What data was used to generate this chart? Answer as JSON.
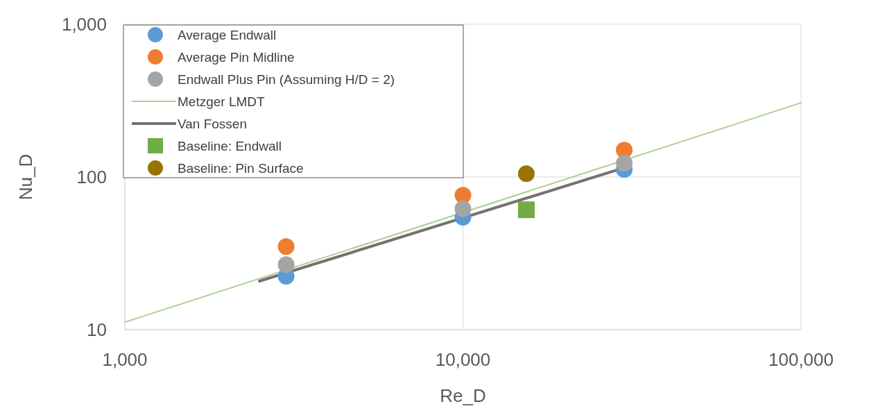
{
  "chart_data": {
    "type": "scatter",
    "xlabel": "Re_D",
    "ylabel": "Nu_D",
    "log": "xy",
    "grid": true,
    "legend": "top left",
    "xlim": [
      1000,
      100000
    ],
    "xticks": [
      {
        "value": 1000,
        "label": "1,000"
      },
      {
        "value": 10000,
        "label": "10,000"
      },
      {
        "value": 100000,
        "label": "100,000"
      }
    ],
    "ylim": [
      10,
      1000
    ],
    "yticks": [
      10,
      100,
      {
        "value": 1000,
        "label": "1,000"
      }
    ],
    "series": [
      {
        "name": "Average Endwall",
        "marker": "circle",
        "color": "#5b9bd5",
        "x": [
          3000,
          10000,
          30000
        ],
        "values": [
          22.4,
          54.5,
          112
        ]
      },
      {
        "name": "Average Pin Midline",
        "marker": "circle",
        "color": "#ed7d31",
        "x": [
          3000,
          10000,
          30000
        ],
        "values": [
          35,
          76,
          150
        ]
      },
      {
        "name": "Endwall Plus Pin (Assuming H/D = 2)",
        "marker": "circle",
        "color": "#a5a5a5",
        "x": [
          3000,
          10000,
          30000
        ],
        "values": [
          26.7,
          62,
          123
        ]
      },
      {
        "name": "Metzger LMDT",
        "type": "line",
        "marker": "none",
        "color": "#a9d18e",
        "x": [
          1000,
          100000
        ],
        "values": [
          11.2,
          306
        ]
      },
      {
        "name": "Van Fossen",
        "type": "line",
        "marker": "none",
        "color": "#767171",
        "x": [
          2500,
          30000
        ],
        "values": [
          20.8,
          115
        ]
      },
      {
        "name": "Baseline: Endwall",
        "marker": "square",
        "color": "#70ad47",
        "x": [
          15400
        ],
        "values": [
          61
        ]
      },
      {
        "name": "Baseline: Pin Surface",
        "marker": "circle",
        "color": "#997300",
        "x": [
          15400
        ],
        "values": [
          105
        ]
      }
    ]
  }
}
